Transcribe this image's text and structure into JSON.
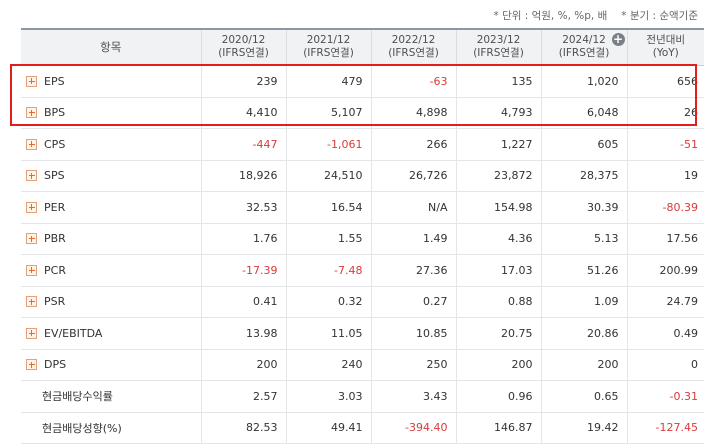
{
  "notes": {
    "unit": "* 단위 : 억원, %, %p, 배",
    "quarter": "* 분기 : 순액기준"
  },
  "header": {
    "item_label": "항목",
    "columns": [
      {
        "year": "2020/12",
        "sub": "(IFRS연결)"
      },
      {
        "year": "2021/12",
        "sub": "(IFRS연결)"
      },
      {
        "year": "2022/12",
        "sub": "(IFRS연결)"
      },
      {
        "year": "2023/12",
        "sub": "(IFRS연결)"
      },
      {
        "year": "2024/12",
        "sub": "(IFRS연결)"
      },
      {
        "year": "전년대비",
        "sub": "(YoY)"
      }
    ],
    "expand_icon": "plus-circle-icon"
  },
  "rows": [
    {
      "label": "EPS",
      "values": [
        "239",
        "479",
        "-63",
        "135",
        "1,020",
        "656"
      ]
    },
    {
      "label": "BPS",
      "values": [
        "4,410",
        "5,107",
        "4,898",
        "4,793",
        "6,048",
        "26"
      ]
    },
    {
      "label": "CPS",
      "values": [
        "-447",
        "-1,061",
        "266",
        "1,227",
        "605",
        "-51"
      ]
    },
    {
      "label": "SPS",
      "values": [
        "18,926",
        "24,510",
        "26,726",
        "23,872",
        "28,375",
        "19"
      ]
    },
    {
      "label": "PER",
      "values": [
        "32.53",
        "16.54",
        "N/A",
        "154.98",
        "30.39",
        "-80.39"
      ]
    },
    {
      "label": "PBR",
      "values": [
        "1.76",
        "1.55",
        "1.49",
        "4.36",
        "5.13",
        "17.56"
      ]
    },
    {
      "label": "PCR",
      "values": [
        "-17.39",
        "-7.48",
        "27.36",
        "17.03",
        "51.26",
        "200.99"
      ]
    },
    {
      "label": "PSR",
      "values": [
        "0.41",
        "0.32",
        "0.27",
        "0.88",
        "1.09",
        "24.79"
      ]
    },
    {
      "label": "EV/EBITDA",
      "values": [
        "13.98",
        "11.05",
        "10.85",
        "20.75",
        "20.86",
        "0.49"
      ]
    },
    {
      "label": "DPS",
      "values": [
        "200",
        "240",
        "250",
        "200",
        "200",
        "0"
      ]
    },
    {
      "label": "현금배당수익률",
      "values": [
        "2.57",
        "3.03",
        "3.43",
        "0.96",
        "0.65",
        "-0.31"
      ]
    },
    {
      "label": "현금배당성향(%)",
      "values": [
        "82.53",
        "49.41",
        "-394.40",
        "146.87",
        "19.42",
        "-127.45"
      ]
    }
  ],
  "colors": {
    "negative": "#d83b3b",
    "highlight_border": "#e01e1e",
    "header_bg": "#f1f2f4",
    "expand_accent": "#e46b2a"
  }
}
